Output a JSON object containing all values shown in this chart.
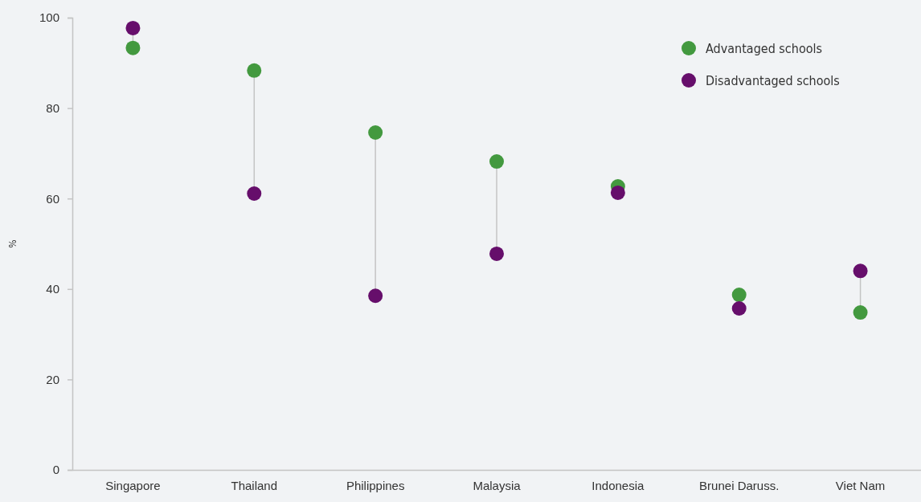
{
  "chart_data": {
    "type": "scatter",
    "ylabel": "%",
    "categories": [
      "Singapore",
      "Thailand",
      "Philippines",
      "Malaysia",
      "Indonesia",
      "Brunei Daruss.",
      "Viet Nam"
    ],
    "series": [
      {
        "name": "Advantaged schools",
        "color": "#43993f",
        "values": [
          93.3,
          88.3,
          74.6,
          68.2,
          62.7,
          38.7,
          34.8
        ]
      },
      {
        "name": "Disadvantaged schools",
        "color": "#660e6b",
        "values": [
          97.7,
          61.1,
          38.5,
          47.8,
          61.3,
          35.7,
          44.0
        ]
      }
    ],
    "ylim": [
      0,
      100
    ],
    "yticks": [
      0,
      20,
      40,
      60,
      80,
      100
    ],
    "grid": false,
    "legend": "top right",
    "marker": "circle"
  }
}
